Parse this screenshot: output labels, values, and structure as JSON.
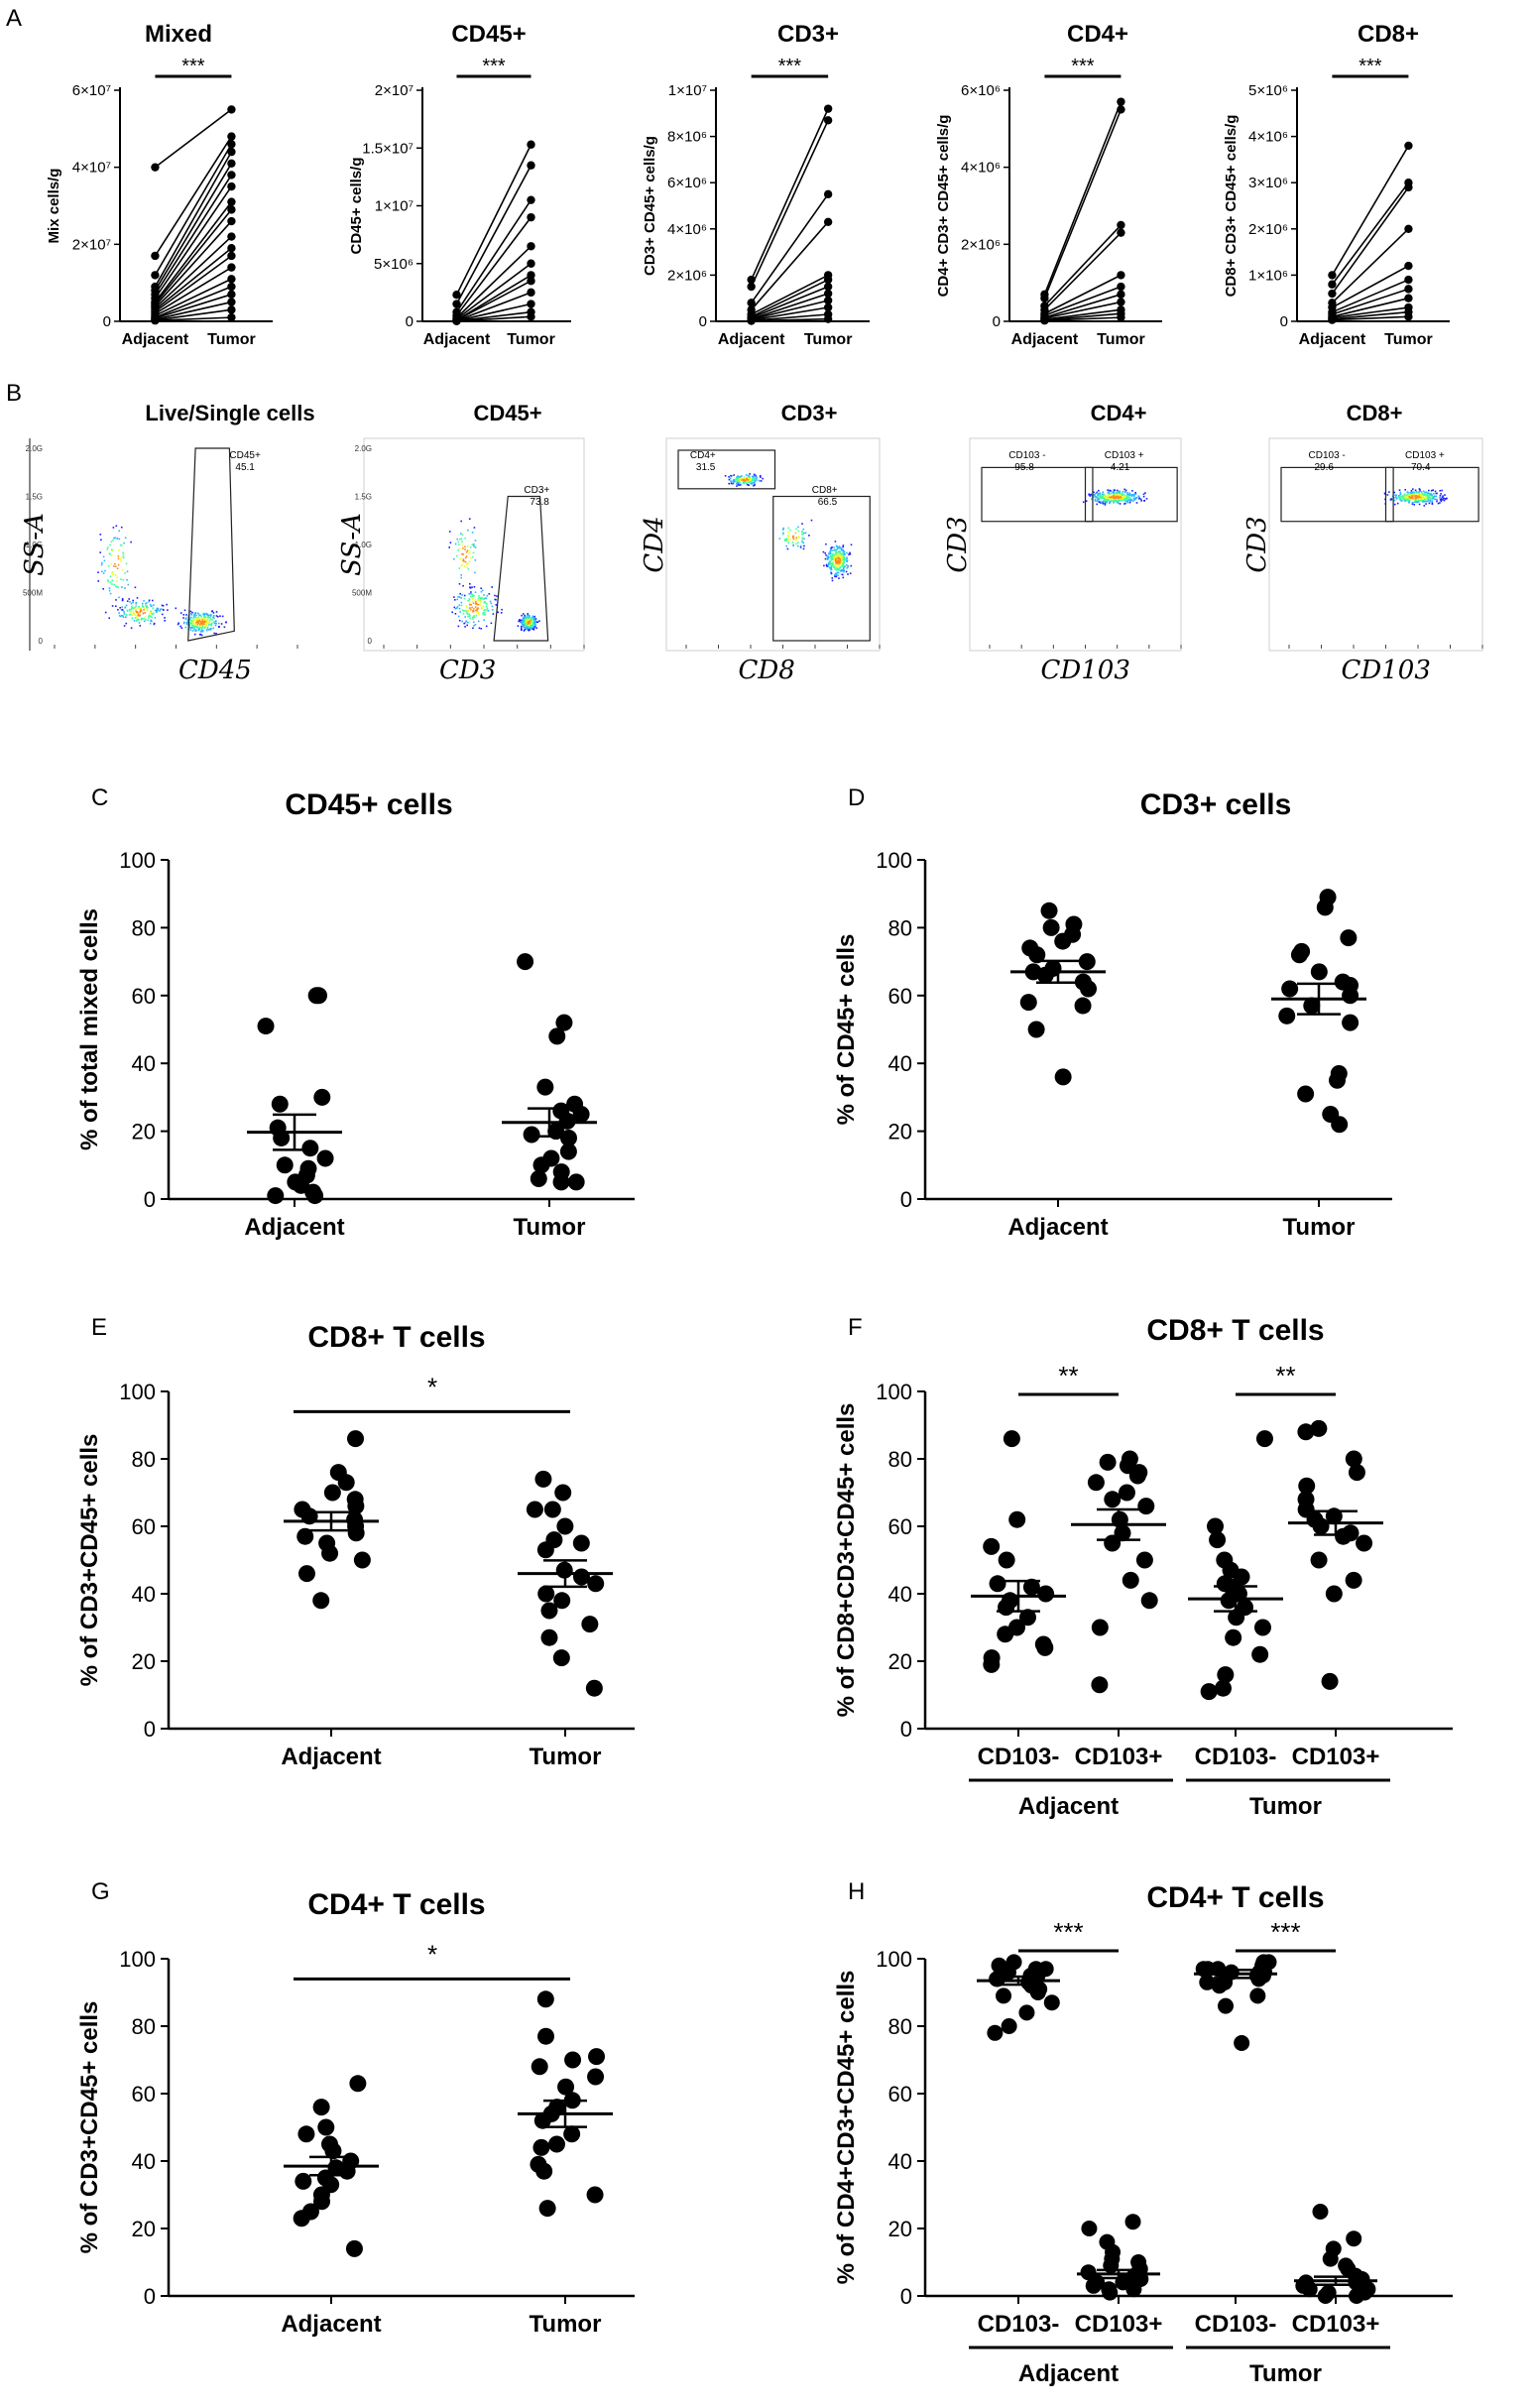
{
  "panel_letters": [
    "A",
    "B",
    "C",
    "D",
    "E",
    "F",
    "G",
    "H"
  ],
  "chart_data": [
    {
      "id": "A1",
      "type": "line",
      "title": "Mixed",
      "ylabel": "Mix cells/g",
      "categories": [
        "Adjacent",
        "Tumor"
      ],
      "ylim": [
        0,
        60000000
      ],
      "yticks": [
        {
          "v": 0,
          "t": "0"
        },
        {
          "v": 20000000,
          "t": "2×10⁷"
        },
        {
          "v": 40000000,
          "t": "4×10⁷"
        },
        {
          "v": 60000000,
          "t": "6×10⁷"
        }
      ],
      "significance": "***",
      "pairs": [
        [
          40000000,
          55000000
        ],
        [
          17000000,
          48000000
        ],
        [
          12000000,
          46000000
        ],
        [
          9000000,
          44000000
        ],
        [
          8000000,
          41000000
        ],
        [
          7000000,
          38000000
        ],
        [
          6000000,
          35000000
        ],
        [
          5000000,
          31000000
        ],
        [
          4500000,
          29000000
        ],
        [
          4000000,
          26000000
        ],
        [
          3500000,
          22000000
        ],
        [
          3000000,
          19000000
        ],
        [
          2500000,
          17000000
        ],
        [
          2000000,
          14000000
        ],
        [
          1500000,
          11000000
        ],
        [
          1000000,
          9000000
        ],
        [
          800000,
          7000000
        ],
        [
          500000,
          5000000
        ],
        [
          300000,
          3000000
        ],
        [
          200000,
          1000000
        ]
      ]
    },
    {
      "id": "A2",
      "type": "line",
      "title": "CD45+",
      "ylabel": "CD45+ cells/g",
      "categories": [
        "Adjacent",
        "Tumor"
      ],
      "ylim": [
        0,
        20000000
      ],
      "yticks": [
        {
          "v": 0,
          "t": "0"
        },
        {
          "v": 5000000,
          "t": "5×10⁶"
        },
        {
          "v": 10000000,
          "t": "1×10⁷"
        },
        {
          "v": 15000000,
          "t": "1.5×10⁷"
        },
        {
          "v": 20000000,
          "t": "2×10⁷"
        }
      ],
      "significance": "***",
      "pairs": [
        [
          2300000,
          15300000
        ],
        [
          1500000,
          13500000
        ],
        [
          800000,
          10500000
        ],
        [
          500000,
          9000000
        ],
        [
          300000,
          6500000
        ],
        [
          200000,
          5000000
        ],
        [
          100000,
          4000000
        ],
        [
          100000,
          3500000
        ],
        [
          50000,
          2500000
        ],
        [
          50000,
          1500000
        ],
        [
          30000,
          800000
        ],
        [
          20000,
          400000
        ]
      ]
    },
    {
      "id": "A3",
      "type": "line",
      "title": "CD3+",
      "ylabel": "CD3+ CD45+ cells/g",
      "categories": [
        "Adjacent",
        "Tumor"
      ],
      "ylim": [
        0,
        10000000
      ],
      "yticks": [
        {
          "v": 0,
          "t": "0"
        },
        {
          "v": 2000000,
          "t": "2×10⁶"
        },
        {
          "v": 4000000,
          "t": "4×10⁶"
        },
        {
          "v": 6000000,
          "t": "6×10⁶"
        },
        {
          "v": 8000000,
          "t": "8×10⁶"
        },
        {
          "v": 10000000,
          "t": "1×10⁷"
        }
      ],
      "significance": "***",
      "pairs": [
        [
          1800000,
          9200000
        ],
        [
          1500000,
          8700000
        ],
        [
          800000,
          5500000
        ],
        [
          500000,
          4300000
        ],
        [
          300000,
          2000000
        ],
        [
          200000,
          1800000
        ],
        [
          150000,
          1500000
        ],
        [
          100000,
          1200000
        ],
        [
          80000,
          900000
        ],
        [
          50000,
          600000
        ],
        [
          30000,
          300000
        ],
        [
          20000,
          100000
        ]
      ]
    },
    {
      "id": "A4",
      "type": "line",
      "title": "CD4+",
      "ylabel": "CD4+ CD3+ CD45+ cells/g",
      "categories": [
        "Adjacent",
        "Tumor"
      ],
      "ylim": [
        0,
        6000000
      ],
      "yticks": [
        {
          "v": 0,
          "t": "0"
        },
        {
          "v": 2000000,
          "t": "2×10⁶"
        },
        {
          "v": 4000000,
          "t": "4×10⁶"
        },
        {
          "v": 6000000,
          "t": "6×10⁶"
        }
      ],
      "significance": "***",
      "pairs": [
        [
          700000,
          5700000
        ],
        [
          600000,
          5500000
        ],
        [
          400000,
          2500000
        ],
        [
          300000,
          2300000
        ],
        [
          200000,
          1200000
        ],
        [
          150000,
          900000
        ],
        [
          100000,
          700000
        ],
        [
          80000,
          500000
        ],
        [
          50000,
          300000
        ],
        [
          30000,
          200000
        ],
        [
          20000,
          100000
        ]
      ]
    },
    {
      "id": "A5",
      "type": "line",
      "title": "CD8+",
      "ylabel": "CD8+ CD3+ CD45+ cells/g",
      "categories": [
        "Adjacent",
        "Tumor"
      ],
      "ylim": [
        0,
        5000000
      ],
      "yticks": [
        {
          "v": 0,
          "t": "0"
        },
        {
          "v": 1000000,
          "t": "1×10⁶"
        },
        {
          "v": 2000000,
          "t": "2×10⁶"
        },
        {
          "v": 3000000,
          "t": "3×10⁶"
        },
        {
          "v": 4000000,
          "t": "4×10⁶"
        },
        {
          "v": 5000000,
          "t": "5×10⁶"
        }
      ],
      "significance": "***",
      "pairs": [
        [
          1000000,
          3800000
        ],
        [
          800000,
          3000000
        ],
        [
          600000,
          2900000
        ],
        [
          400000,
          2000000
        ],
        [
          300000,
          1200000
        ],
        [
          200000,
          900000
        ],
        [
          150000,
          700000
        ],
        [
          100000,
          500000
        ],
        [
          80000,
          300000
        ],
        [
          50000,
          200000
        ],
        [
          30000,
          100000
        ]
      ]
    },
    {
      "id": "C",
      "type": "scatter",
      "title": "CD45+ cells",
      "ylabel": "% of total mixed cells",
      "categories": [
        "Adjacent",
        "Tumor"
      ],
      "ylim": [
        0,
        100
      ],
      "yticks": [
        0,
        20,
        40,
        60,
        80,
        100
      ],
      "groups": [
        {
          "name": "Adjacent",
          "mean": 19.7,
          "sem": 5.2,
          "values": [
            60,
            60,
            51,
            30,
            28,
            21,
            18,
            15,
            12,
            10,
            9,
            7,
            5,
            4,
            2,
            1,
            1
          ]
        },
        {
          "name": "Tumor",
          "mean": 22.6,
          "sem": 4.1,
          "values": [
            70,
            52,
            48,
            33,
            28,
            26,
            25,
            23,
            20,
            19,
            18,
            14,
            12,
            10,
            8,
            6,
            5,
            5
          ]
        }
      ]
    },
    {
      "id": "D",
      "type": "scatter",
      "title": "CD3+ cells",
      "ylabel": "% of CD45+ cells",
      "categories": [
        "Adjacent",
        "Tumor"
      ],
      "ylim": [
        0,
        100
      ],
      "yticks": [
        0,
        20,
        40,
        60,
        80,
        100
      ],
      "groups": [
        {
          "name": "Adjacent",
          "mean": 67,
          "sem": 3.2,
          "values": [
            85,
            81,
            80,
            78,
            76,
            74,
            72,
            70,
            68,
            67,
            66,
            64,
            62,
            58,
            57,
            50,
            36
          ]
        },
        {
          "name": "Tumor",
          "mean": 59,
          "sem": 4.5,
          "values": [
            89,
            86,
            77,
            73,
            72,
            67,
            64,
            63,
            62,
            60,
            57,
            54,
            52,
            37,
            35,
            31,
            25,
            22
          ]
        }
      ]
    },
    {
      "id": "E",
      "type": "scatter",
      "title": "CD8+ T cells",
      "ylabel": "% of CD3+CD45+ cells",
      "categories": [
        "Adjacent",
        "Tumor"
      ],
      "ylim": [
        0,
        100
      ],
      "yticks": [
        0,
        20,
        40,
        60,
        80,
        100
      ],
      "significance": "*",
      "groups": [
        {
          "name": "Adjacent",
          "mean": 61.5,
          "sem": 2.7,
          "values": [
            86,
            76,
            73,
            70,
            68,
            66,
            65,
            63,
            62,
            60,
            58,
            57,
            55,
            52,
            50,
            46,
            38
          ]
        },
        {
          "name": "Tumor",
          "mean": 46,
          "sem": 3.9,
          "values": [
            74,
            70,
            65,
            65,
            60,
            56,
            55,
            53,
            47,
            45,
            43,
            40,
            38,
            35,
            31,
            27,
            21,
            12
          ]
        }
      ]
    },
    {
      "id": "F",
      "type": "scatter",
      "title": "CD8+ T cells",
      "ylabel": "% of CD8+CD3+CD45+ cells",
      "categories": [
        "CD103-",
        "CD103+",
        "CD103-",
        "CD103+"
      ],
      "group_labels": [
        "Adjacent",
        "Tumor"
      ],
      "ylim": [
        0,
        100
      ],
      "yticks": [
        0,
        20,
        40,
        60,
        80,
        100
      ],
      "significance": [
        "**",
        "**"
      ],
      "groups": [
        {
          "name": "Adjacent CD103-",
          "mean": 39.3,
          "sem": 4.5,
          "values": [
            86,
            62,
            54,
            50,
            43,
            42,
            40,
            38,
            36,
            33,
            30,
            28,
            25,
            24,
            21,
            19
          ]
        },
        {
          "name": "Adjacent CD103+",
          "mean": 60.5,
          "sem": 4.5,
          "values": [
            80,
            79,
            78,
            76,
            75,
            73,
            70,
            68,
            66,
            62,
            58,
            55,
            50,
            44,
            38,
            30,
            13
          ]
        },
        {
          "name": "Tumor CD103-",
          "mean": 38.5,
          "sem": 3.7,
          "values": [
            86,
            60,
            56,
            50,
            47,
            45,
            43,
            42,
            40,
            38,
            36,
            33,
            30,
            27,
            22,
            16,
            12,
            11
          ]
        },
        {
          "name": "Tumor CD103+",
          "mean": 61,
          "sem": 3.5,
          "values": [
            89,
            88,
            80,
            76,
            72,
            68,
            65,
            63,
            62,
            60,
            58,
            57,
            55,
            50,
            44,
            40,
            14
          ]
        }
      ]
    },
    {
      "id": "G",
      "type": "scatter",
      "title": "CD4+ T cells",
      "ylabel": "% of CD3+CD45+ cells",
      "categories": [
        "Adjacent",
        "Tumor"
      ],
      "ylim": [
        0,
        100
      ],
      "yticks": [
        0,
        20,
        40,
        60,
        80,
        100
      ],
      "significance": "*",
      "groups": [
        {
          "name": "Adjacent",
          "mean": 38.5,
          "sem": 2.7,
          "values": [
            63,
            56,
            50,
            48,
            45,
            43,
            40,
            38,
            37,
            35,
            34,
            33,
            30,
            28,
            25,
            23,
            14
          ]
        },
        {
          "name": "Tumor",
          "mean": 54,
          "sem": 3.9,
          "values": [
            88,
            77,
            71,
            70,
            68,
            65,
            62,
            58,
            56,
            54,
            52,
            48,
            45,
            44,
            39,
            37,
            30,
            26
          ]
        }
      ]
    },
    {
      "id": "H",
      "type": "scatter",
      "title": "CD4+ T cells",
      "ylabel": "% of CD4+CD3+CD45+ cells",
      "categories": [
        "CD103-",
        "CD103+",
        "CD103-",
        "CD103+"
      ],
      "group_labels": [
        "Adjacent",
        "Tumor"
      ],
      "ylim": [
        0,
        100
      ],
      "yticks": [
        0,
        20,
        40,
        60,
        80,
        100
      ],
      "significance": [
        "***",
        "***"
      ],
      "groups": [
        {
          "name": "Adjacent CD103-",
          "mean": 93.5,
          "sem": 1.2,
          "values": [
            99,
            98,
            97,
            97,
            96,
            96,
            95,
            95,
            94,
            94,
            93,
            92,
            91,
            90,
            89,
            87,
            84,
            80,
            78
          ]
        },
        {
          "name": "Adjacent CD103+",
          "mean": 6.5,
          "sem": 1.2,
          "values": [
            22,
            20,
            16,
            13,
            11,
            10,
            9,
            8,
            8,
            7,
            6,
            6,
            5,
            4,
            4,
            3,
            2,
            2,
            1
          ]
        },
        {
          "name": "Tumor CD103-",
          "mean": 95.5,
          "sem": 1.2,
          "values": [
            99,
            99,
            98,
            98,
            97,
            97,
            97,
            96,
            96,
            96,
            95,
            95,
            94,
            93,
            93,
            92,
            89,
            86,
            75
          ]
        },
        {
          "name": "Tumor CD103+",
          "mean": 4.5,
          "sem": 1.2,
          "values": [
            25,
            17,
            14,
            11,
            9,
            8,
            6,
            5,
            4,
            4,
            3,
            3,
            2,
            2,
            2,
            1,
            1,
            0,
            0
          ]
        }
      ]
    }
  ],
  "flow": {
    "panels": [
      {
        "title": "Live/Single cells",
        "xlab": "CD45",
        "ylab": "SS-A",
        "gates": [
          {
            "name": "CD45+",
            "val": "45.1"
          }
        ],
        "yticks": [
          "2.0G",
          "1.5G",
          "1.0G",
          "500M",
          "0"
        ]
      },
      {
        "title": "CD45+",
        "xlab": "CD3",
        "ylab": "SS-A",
        "gates": [
          {
            "name": "CD3+",
            "val": "73.8"
          }
        ],
        "yticks": [
          "2.0G",
          "1.5G",
          "1.0G",
          "500M",
          "0"
        ]
      },
      {
        "title": "CD3+",
        "xlab": "CD8",
        "ylab": "CD4",
        "gates": [
          {
            "name": "CD4+",
            "val": "31.5"
          },
          {
            "name": "CD8+",
            "val": "66.5"
          }
        ],
        "yticks": []
      },
      {
        "title": "CD4+",
        "xlab": "CD103",
        "ylab": "CD3",
        "gates": [
          {
            "name": "CD103 -",
            "val": "95.8"
          },
          {
            "name": "CD103 +",
            "val": "4.21"
          }
        ],
        "yticks": []
      },
      {
        "title": "CD8+",
        "xlab": "CD103",
        "ylab": "CD3",
        "gates": [
          {
            "name": "CD103 -",
            "val": "29.6"
          },
          {
            "name": "CD103 +",
            "val": "70.4"
          }
        ],
        "yticks": []
      }
    ]
  }
}
